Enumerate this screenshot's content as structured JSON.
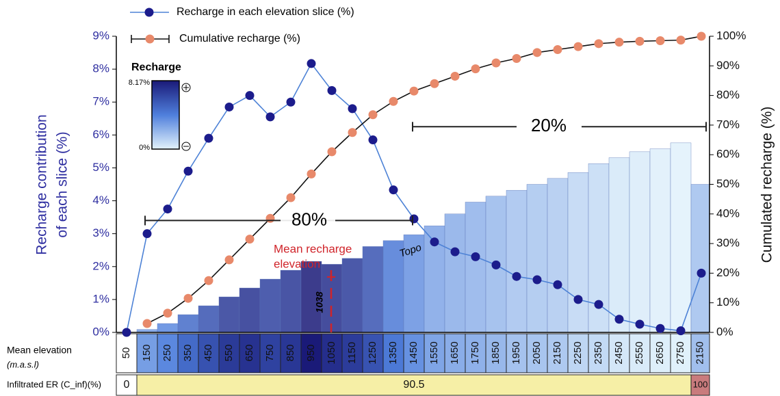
{
  "chart_data": {
    "type": "line",
    "categories": [
      "50",
      "150",
      "250",
      "350",
      "450",
      "550",
      "650",
      "750",
      "850",
      "950",
      "1050",
      "1150",
      "1250",
      "1350",
      "1450",
      "1550",
      "1650",
      "1750",
      "1850",
      "1950",
      "2050",
      "2150",
      "2250",
      "2350",
      "2450",
      "2550",
      "2650",
      "2750",
      "2150"
    ],
    "series": [
      {
        "name": "Recharge in each elevation slice (%)",
        "color": "#1c1c8c",
        "line_color": "#4d82d6",
        "axis": "y",
        "values": [
          0,
          3.0,
          3.75,
          4.9,
          5.9,
          6.85,
          7.2,
          6.55,
          7.0,
          8.17,
          7.35,
          6.8,
          5.85,
          4.33,
          3.45,
          2.75,
          2.45,
          2.3,
          2.05,
          1.7,
          1.6,
          1.45,
          1.0,
          0.85,
          0.4,
          0.25,
          0.12,
          0.05,
          1.8
        ]
      },
      {
        "name": "Cumulative recharge (%)",
        "color": "#e8896a",
        "line_color": "#111111",
        "axis": "y2",
        "values": [
          null,
          3,
          6.5,
          11.5,
          17.5,
          24.5,
          31.5,
          38.5,
          45.5,
          53.5,
          61,
          67.5,
          73.5,
          78,
          81.5,
          84,
          86.5,
          89,
          91,
          92.5,
          94.5,
          95.5,
          96.5,
          97.5,
          98,
          98.3,
          98.5,
          98.7,
          100
        ]
      },
      {
        "name": "Topo",
        "color": "#9fb6e6",
        "axis": "y2",
        "values": [
          0,
          1,
          3,
          6,
          9,
          12,
          15,
          18,
          21,
          24,
          23,
          25,
          29,
          31,
          33,
          36,
          40,
          44,
          46,
          48,
          50,
          52,
          54,
          57,
          59,
          61,
          62,
          64,
          50
        ]
      }
    ],
    "ylabel": [
      "Recharge contribution",
      "of each slice (%)"
    ],
    "y2label": "Cumulated recharge (%)",
    "ylim": [
      0,
      9
    ],
    "yticks": [
      {
        "value": 0,
        "label": "0%"
      },
      {
        "value": 1,
        "label": "1%"
      },
      {
        "value": 2,
        "label": "2%"
      },
      {
        "value": 3,
        "label": "3%"
      },
      {
        "value": 4,
        "label": "4%"
      },
      {
        "value": 5,
        "label": "5%"
      },
      {
        "value": 6,
        "label": "6%"
      },
      {
        "value": 7,
        "label": "7%"
      },
      {
        "value": 8,
        "label": "8%"
      },
      {
        "value": 9,
        "label": "9%"
      }
    ],
    "y2lim": [
      0,
      100
    ],
    "y2ticks": [
      {
        "value": 0,
        "label": "0%"
      },
      {
        "value": 10,
        "label": "10%"
      },
      {
        "value": 20,
        "label": "20%"
      },
      {
        "value": 30,
        "label": "30%"
      },
      {
        "value": 40,
        "label": "40%"
      },
      {
        "value": 50,
        "label": "50%"
      },
      {
        "value": 60,
        "label": "60%"
      },
      {
        "value": 70,
        "label": "70%"
      },
      {
        "value": 80,
        "label": "80%"
      },
      {
        "value": 90,
        "label": "90%"
      },
      {
        "value": 100,
        "label": "100%"
      }
    ],
    "colorbar": {
      "title": "Recharge",
      "max": {
        "value": 8.17,
        "label": "8.17%"
      },
      "min": {
        "value": 0,
        "label": "0%"
      }
    },
    "annotations": {
      "share_low": "80%",
      "share_high": "20%",
      "mean_label": [
        "Mean recharge",
        "elevation"
      ],
      "mean_value": 1038,
      "topo_label": "Topo"
    },
    "table": {
      "row1_label": [
        "Mean elevation",
        "(m.a.s.l)"
      ],
      "row2_label": "Infiltrated ER (C_inf)(%)",
      "row2_cells": [
        {
          "text": "0",
          "color": "#ffffff"
        },
        {
          "text": "90.5",
          "color": "#f6efa6"
        },
        {
          "text": "100",
          "color": "#c97b7d"
        }
      ]
    }
  }
}
